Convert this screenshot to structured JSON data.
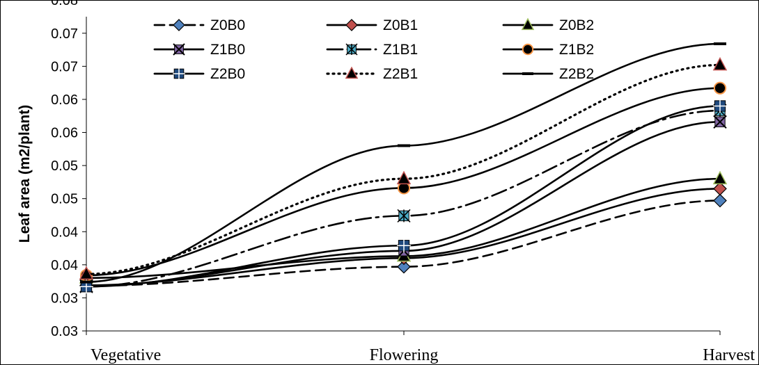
{
  "chart_data": {
    "type": "line",
    "ylabel": "Leaf area (m2/plant)",
    "xlabel": "",
    "categories": [
      "Vegetative",
      "Flowering",
      "Harvest"
    ],
    "ylim": [
      0.025,
      0.0725
    ],
    "ytick_values": [
      0.025,
      0.03,
      0.035,
      0.04,
      0.045,
      0.05,
      0.055,
      0.06,
      0.065,
      0.07,
      0.075
    ],
    "ytick_labels": [
      "0.03",
      "0.03",
      "0.04",
      "0.04",
      "0.05",
      "0.05",
      "0.06",
      "0.06",
      "0.07",
      "0.07",
      "0.08"
    ],
    "legend_position": "top",
    "grid": false,
    "series": [
      {
        "name": "Z0B0",
        "values": [
          0.0318,
          0.0347,
          0.0447
        ],
        "marker": "diamond",
        "marker_color": "#4F81BD",
        "dash": "14,8"
      },
      {
        "name": "Z0B1",
        "values": [
          0.0319,
          0.036,
          0.0465
        ],
        "marker": "diamond",
        "marker_color": "#C0504D",
        "dash": ""
      },
      {
        "name": "Z0B2",
        "values": [
          0.033,
          0.0363,
          0.048
        ],
        "marker": "triangle",
        "marker_color": "#9BBB59",
        "dash": ""
      },
      {
        "name": "Z1B0",
        "values": [
          0.0318,
          0.0371,
          0.0566
        ],
        "marker": "x",
        "marker_color": "#8064A2",
        "dash": ""
      },
      {
        "name": "Z1B1",
        "values": [
          0.0317,
          0.0424,
          0.0583
        ],
        "marker": "star",
        "marker_color": "#4BACC6",
        "dash": "22,7,4,7"
      },
      {
        "name": "Z1B2",
        "values": [
          0.0334,
          0.0466,
          0.0617
        ],
        "marker": "circle",
        "marker_color": "#F79646",
        "dash": ""
      },
      {
        "name": "Z2B0",
        "values": [
          0.0317,
          0.0379,
          0.059
        ],
        "marker": "square-plus",
        "marker_color": "#1F497D",
        "dash": ""
      },
      {
        "name": "Z2B1",
        "values": [
          0.0336,
          0.048,
          0.0652
        ],
        "marker": "triangle",
        "marker_color": "#C0504D",
        "dash": "2,6"
      },
      {
        "name": "Z2B2",
        "values": [
          0.0324,
          0.053,
          0.0684
        ],
        "marker": "dash",
        "marker_color": "#000000",
        "dash": ""
      }
    ]
  }
}
